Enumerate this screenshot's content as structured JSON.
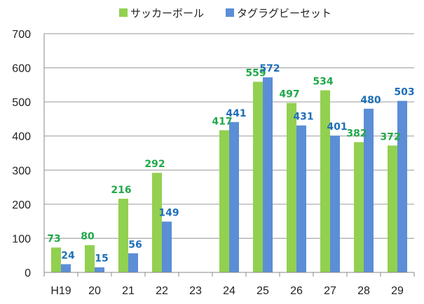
{
  "chart_data": {
    "type": "bar",
    "title": "",
    "xlabel": "",
    "ylabel": "",
    "categories": [
      "H19",
      "20",
      "21",
      "22",
      "23",
      "24",
      "25",
      "26",
      "27",
      "28",
      "29"
    ],
    "series": [
      {
        "name": "サッカーボール",
        "values": [
          73,
          80,
          216,
          292,
          null,
          417,
          559,
          497,
          534,
          382,
          372
        ]
      },
      {
        "name": "タグラグビーセット",
        "values": [
          24,
          15,
          56,
          149,
          null,
          441,
          572,
          431,
          401,
          480,
          503
        ]
      }
    ],
    "ylim": [
      0,
      700
    ],
    "yticks": [
      0,
      100,
      200,
      300,
      400,
      500,
      600,
      700
    ],
    "grid": true,
    "legend_position": "top"
  },
  "colors": {
    "series": [
      "#92d050",
      "#5b8ed6"
    ],
    "labels": [
      "#22a84a",
      "#1f6fb8"
    ],
    "grid": "#9a9a9a",
    "axis": "#888888"
  }
}
